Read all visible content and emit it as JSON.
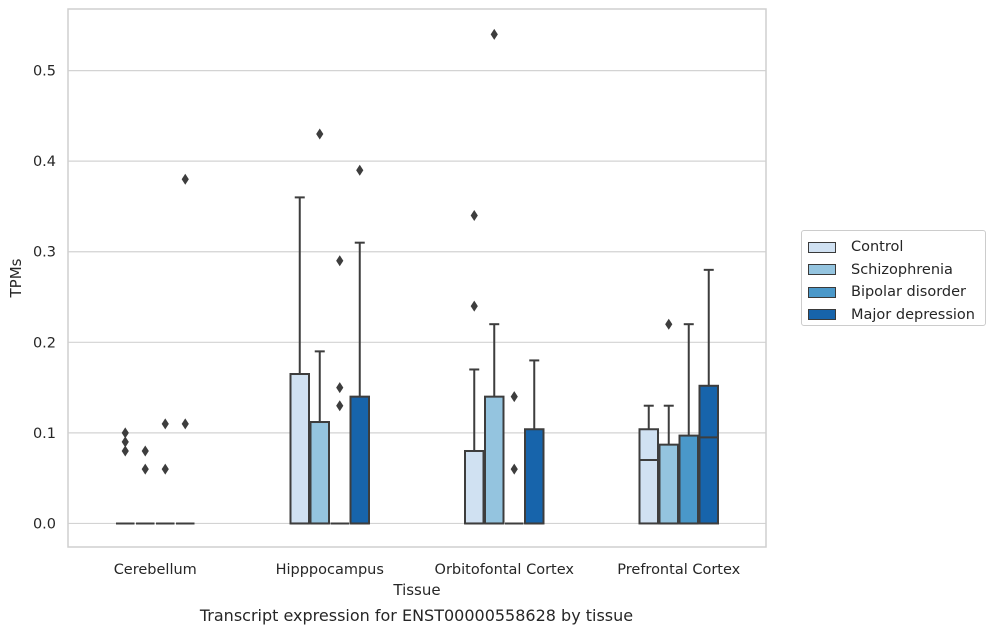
{
  "caption": "Transcript expression for ENST00000558628 by tissue",
  "chart_data": {
    "type": "box",
    "xlabel": "Tissue",
    "ylabel": "TPMs",
    "ylim": [
      -0.026,
      0.568
    ],
    "yticks": [
      0.0,
      0.1,
      0.2,
      0.3,
      0.4,
      0.5
    ],
    "grid": "horizontal",
    "legend_placement": "right-outside",
    "categories": [
      "Cerebellum",
      "Hipppocampus",
      "Orbitofontal Cortex",
      "Prefrontal Cortex"
    ],
    "series": [
      {
        "name": "Control",
        "color": "#d0e1f2",
        "boxes": [
          {
            "q1": 0,
            "median": 0,
            "q3": 0,
            "whisker_low": 0,
            "whisker_high": 0,
            "outliers": [
              0.1,
              0.09,
              0.08
            ]
          },
          {
            "q1": 0,
            "median": 0,
            "q3": 0.165,
            "whisker_low": 0,
            "whisker_high": 0.36,
            "outliers": []
          },
          {
            "q1": 0,
            "median": 0,
            "q3": 0.08,
            "whisker_low": 0,
            "whisker_high": 0.17,
            "outliers": [
              0.34,
              0.24
            ]
          },
          {
            "q1": 0,
            "median": 0.07,
            "q3": 0.104,
            "whisker_low": 0,
            "whisker_high": 0.13,
            "outliers": []
          }
        ]
      },
      {
        "name": "Schizophrenia",
        "color": "#94c4df",
        "boxes": [
          {
            "q1": 0,
            "median": 0,
            "q3": 0,
            "whisker_low": 0,
            "whisker_high": 0,
            "outliers": [
              0.08,
              0.06
            ]
          },
          {
            "q1": 0,
            "median": 0,
            "q3": 0.112,
            "whisker_low": 0,
            "whisker_high": 0.19,
            "outliers": [
              0.43
            ]
          },
          {
            "q1": 0,
            "median": 0,
            "q3": 0.14,
            "whisker_low": 0,
            "whisker_high": 0.22,
            "outliers": [
              0.54
            ]
          },
          {
            "q1": 0,
            "median": 0,
            "q3": 0.087,
            "whisker_low": 0,
            "whisker_high": 0.13,
            "outliers": [
              0.22
            ]
          }
        ]
      },
      {
        "name": "Bipolar disorder",
        "color": "#4a98c9",
        "boxes": [
          {
            "q1": 0,
            "median": 0,
            "q3": 0,
            "whisker_low": 0,
            "whisker_high": 0,
            "outliers": [
              0.11,
              0.06
            ]
          },
          {
            "q1": 0,
            "median": 0,
            "q3": 0,
            "whisker_low": 0,
            "whisker_high": 0,
            "outliers": [
              0.29,
              0.15,
              0.13
            ]
          },
          {
            "q1": 0,
            "median": 0,
            "q3": 0,
            "whisker_low": 0,
            "whisker_high": 0,
            "outliers": [
              0.14,
              0.06
            ]
          },
          {
            "q1": 0,
            "median": 0,
            "q3": 0.097,
            "whisker_low": 0,
            "whisker_high": 0.22,
            "outliers": []
          }
        ]
      },
      {
        "name": "Major depression",
        "color": "#1764ab",
        "boxes": [
          {
            "q1": 0,
            "median": 0,
            "q3": 0,
            "whisker_low": 0,
            "whisker_high": 0,
            "outliers": [
              0.38,
              0.11
            ]
          },
          {
            "q1": 0,
            "median": 0,
            "q3": 0.14,
            "whisker_low": 0,
            "whisker_high": 0.31,
            "outliers": [
              0.39
            ]
          },
          {
            "q1": 0,
            "median": 0,
            "q3": 0.104,
            "whisker_low": 0,
            "whisker_high": 0.18,
            "outliers": []
          },
          {
            "q1": 0,
            "median": 0.095,
            "q3": 0.152,
            "whisker_low": 0,
            "whisker_high": 0.28,
            "outliers": []
          }
        ]
      }
    ]
  }
}
